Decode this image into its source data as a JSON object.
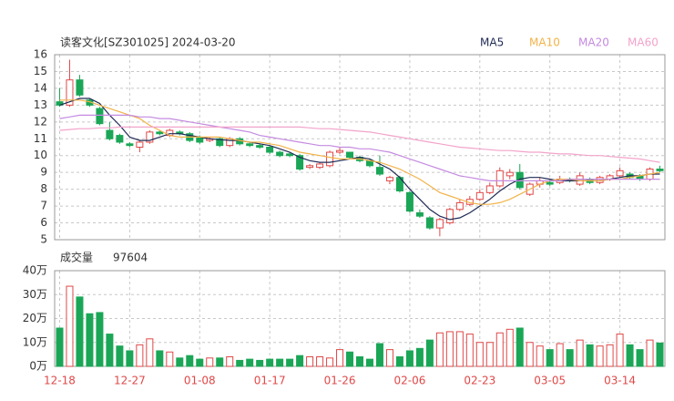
{
  "chart_data": [
    {
      "type": "candlestick",
      "title": "读客文化[SZ301025] 2024-03-20",
      "categories": [
        "12-18",
        null,
        null,
        null,
        null,
        null,
        null,
        "12-27",
        null,
        null,
        null,
        null,
        null,
        null,
        "01-08",
        null,
        null,
        null,
        null,
        null,
        null,
        "01-17",
        null,
        null,
        null,
        null,
        null,
        null,
        "01-26",
        null,
        null,
        null,
        null,
        null,
        null,
        "02-06",
        null,
        null,
        null,
        null,
        null,
        null,
        "02-23",
        null,
        null,
        null,
        null,
        null,
        null,
        "03-05",
        null,
        null,
        null,
        null,
        null,
        null,
        "03-14",
        null,
        null,
        null,
        null
      ],
      "open": [
        13.2,
        13.0,
        14.5,
        13.3,
        12.8,
        11.5,
        11.2,
        10.7,
        10.5,
        10.8,
        11.4,
        11.2,
        11.4,
        11.3,
        11.1,
        10.9,
        11.0,
        10.6,
        11.0,
        10.7,
        10.6,
        10.5,
        10.2,
        10.1,
        10.0,
        9.3,
        9.3,
        9.4,
        10.2,
        10.2,
        9.9,
        9.7,
        9.3,
        8.5,
        8.7,
        7.8,
        6.6,
        6.3,
        5.7,
        6.0,
        6.8,
        7.1,
        7.4,
        7.8,
        8.2,
        8.8,
        9.0,
        7.7,
        8.3,
        8.4,
        8.4,
        8.6,
        8.3,
        8.6,
        8.4,
        8.6,
        8.8,
        8.9,
        8.8,
        8.6,
        9.2
      ],
      "high": [
        14.0,
        15.7,
        14.8,
        13.4,
        12.9,
        12.0,
        11.3,
        10.8,
        10.9,
        11.5,
        11.5,
        11.6,
        11.5,
        11.4,
        11.2,
        11.1,
        11.1,
        11.1,
        11.1,
        10.8,
        10.7,
        10.6,
        10.3,
        10.2,
        10.1,
        9.5,
        9.6,
        10.3,
        10.5,
        10.2,
        10.0,
        9.8,
        10.0,
        8.8,
        8.8,
        7.9,
        6.8,
        6.4,
        6.3,
        6.9,
        7.4,
        7.6,
        8.0,
        8.4,
        9.3,
        9.2,
        9.5,
        8.4,
        8.7,
        8.6,
        8.8,
        8.7,
        9.0,
        8.7,
        8.8,
        8.9,
        9.3,
        9.0,
        8.9,
        9.3,
        9.4
      ],
      "low": [
        12.9,
        12.9,
        13.5,
        12.9,
        11.8,
        10.9,
        10.7,
        10.5,
        10.2,
        10.7,
        11.2,
        11.1,
        11.2,
        10.8,
        10.7,
        10.8,
        10.5,
        10.5,
        10.6,
        10.5,
        10.4,
        10.1,
        9.9,
        9.9,
        9.1,
        9.2,
        9.2,
        9.3,
        10.1,
        9.8,
        9.6,
        9.3,
        8.8,
        8.3,
        7.8,
        6.6,
        6.3,
        5.6,
        5.2,
        5.9,
        6.7,
        7.0,
        7.3,
        7.7,
        8.1,
        8.6,
        8.0,
        7.6,
        8.1,
        8.2,
        8.3,
        8.4,
        8.2,
        8.3,
        8.3,
        8.5,
        8.7,
        8.6,
        8.5,
        8.5,
        9.0
      ],
      "close": [
        13.0,
        14.5,
        13.6,
        13.0,
        11.9,
        11.0,
        10.8,
        10.6,
        10.8,
        11.4,
        11.3,
        11.5,
        11.3,
        10.9,
        10.8,
        11.0,
        10.6,
        11.0,
        10.7,
        10.6,
        10.5,
        10.2,
        10.0,
        10.0,
        9.2,
        9.4,
        9.5,
        10.2,
        10.3,
        9.9,
        9.7,
        9.4,
        8.9,
        8.7,
        7.9,
        6.7,
        6.4,
        5.7,
        6.2,
        6.8,
        7.2,
        7.4,
        7.8,
        8.2,
        9.1,
        9.0,
        8.1,
        8.3,
        8.5,
        8.3,
        8.6,
        8.5,
        8.8,
        8.4,
        8.7,
        8.8,
        9.1,
        8.7,
        8.6,
        9.2,
        9.1
      ],
      "up_color": "#e04848",
      "down_color": "#1aa656",
      "series": [
        {
          "name": "MA5",
          "color": "#1f2a55",
          "values": [
            13.0,
            13.2,
            13.4,
            13.4,
            13.1,
            12.4,
            11.8,
            11.1,
            10.9,
            10.9,
            11.1,
            11.3,
            11.3,
            11.2,
            11.1,
            11.0,
            10.95,
            10.9,
            10.9,
            10.8,
            10.7,
            10.6,
            10.4,
            10.2,
            9.9,
            9.7,
            9.6,
            9.6,
            9.7,
            9.8,
            9.9,
            9.8,
            9.5,
            9.2,
            8.7,
            8.0,
            7.4,
            6.8,
            6.4,
            6.2,
            6.3,
            6.6,
            7.0,
            7.4,
            7.9,
            8.3,
            8.6,
            8.7,
            8.7,
            8.6,
            8.5,
            8.5,
            8.5,
            8.5,
            8.5,
            8.6,
            8.7,
            8.8,
            8.8,
            8.9,
            8.9
          ]
        },
        {
          "name": "MA10",
          "color": "#f2b34a",
          "values": [
            13.3,
            13.3,
            13.3,
            13.2,
            13.0,
            12.8,
            12.6,
            12.4,
            12.2,
            11.8,
            11.5,
            11.2,
            11.1,
            11.1,
            11.1,
            11.1,
            11.1,
            11.0,
            10.9,
            10.8,
            10.8,
            10.7,
            10.6,
            10.4,
            10.2,
            10.1,
            10.0,
            9.9,
            9.8,
            9.8,
            9.8,
            9.7,
            9.6,
            9.4,
            9.2,
            8.9,
            8.6,
            8.2,
            7.8,
            7.6,
            7.4,
            7.2,
            7.1,
            7.1,
            7.2,
            7.4,
            7.7,
            8.0,
            8.3,
            8.5,
            8.6,
            8.6,
            8.5,
            8.5,
            8.5,
            8.6,
            8.6,
            8.7,
            8.8,
            8.9,
            9.0
          ]
        },
        {
          "name": "MA20",
          "color": "#c48ae0",
          "values": [
            12.2,
            12.3,
            12.4,
            12.4,
            12.4,
            12.4,
            12.4,
            12.4,
            12.3,
            12.3,
            12.2,
            12.2,
            12.1,
            12.0,
            11.9,
            11.8,
            11.7,
            11.6,
            11.5,
            11.4,
            11.2,
            11.1,
            11.0,
            10.9,
            10.8,
            10.7,
            10.6,
            10.6,
            10.5,
            10.5,
            10.4,
            10.4,
            10.3,
            10.2,
            10.0,
            9.8,
            9.6,
            9.4,
            9.2,
            9.0,
            8.8,
            8.7,
            8.6,
            8.5,
            8.5,
            8.5,
            8.5,
            8.5,
            8.5,
            8.5,
            8.5,
            8.6,
            8.6,
            8.6,
            8.6,
            8.6,
            8.6,
            8.6,
            8.6,
            8.6,
            8.6
          ]
        },
        {
          "name": "MA60",
          "color": "#f2a3cb",
          "values": [
            11.5,
            11.55,
            11.6,
            11.6,
            11.65,
            11.65,
            11.7,
            11.7,
            11.7,
            11.7,
            11.7,
            11.7,
            11.7,
            11.7,
            11.7,
            11.7,
            11.7,
            11.7,
            11.7,
            11.7,
            11.7,
            11.7,
            11.7,
            11.7,
            11.7,
            11.65,
            11.6,
            11.6,
            11.55,
            11.5,
            11.45,
            11.4,
            11.3,
            11.2,
            11.1,
            11.0,
            10.9,
            10.8,
            10.7,
            10.6,
            10.5,
            10.45,
            10.4,
            10.35,
            10.3,
            10.3,
            10.25,
            10.2,
            10.2,
            10.15,
            10.1,
            10.1,
            10.05,
            10.0,
            10.0,
            9.95,
            9.9,
            9.85,
            9.8,
            9.7,
            9.6
          ]
        }
      ],
      "ylim": [
        5,
        16
      ],
      "yticks": [
        5,
        6,
        7,
        8,
        9,
        10,
        11,
        12,
        13,
        14,
        15,
        16
      ],
      "grid": true
    },
    {
      "type": "bar",
      "title": "成交量",
      "latest_value": 97604,
      "values": [
        16,
        33.5,
        29,
        22,
        22.5,
        13.5,
        8.5,
        6.5,
        9,
        11.5,
        6.5,
        6,
        3.5,
        4.5,
        3,
        3.5,
        3.5,
        4,
        2.5,
        3,
        2.5,
        3,
        3,
        3,
        4.5,
        4,
        4,
        3.5,
        7,
        6,
        4,
        3,
        9.5,
        7,
        4,
        6.5,
        7.5,
        11,
        14,
        14.5,
        14.5,
        13.5,
        10,
        10,
        14,
        15.5,
        16,
        10,
        8.5,
        7,
        9.5,
        7,
        11,
        9,
        8.5,
        9,
        13.5,
        9,
        7,
        11,
        9.7604
      ],
      "ylim": [
        0,
        40
      ],
      "yticks": [
        {
          "value": 0,
          "label": "0万"
        },
        {
          "value": 10,
          "label": "10万"
        },
        {
          "value": 20,
          "label": "20万"
        },
        {
          "value": 30,
          "label": "30万"
        },
        {
          "value": 40,
          "label": "40万"
        }
      ],
      "grid": true
    }
  ]
}
